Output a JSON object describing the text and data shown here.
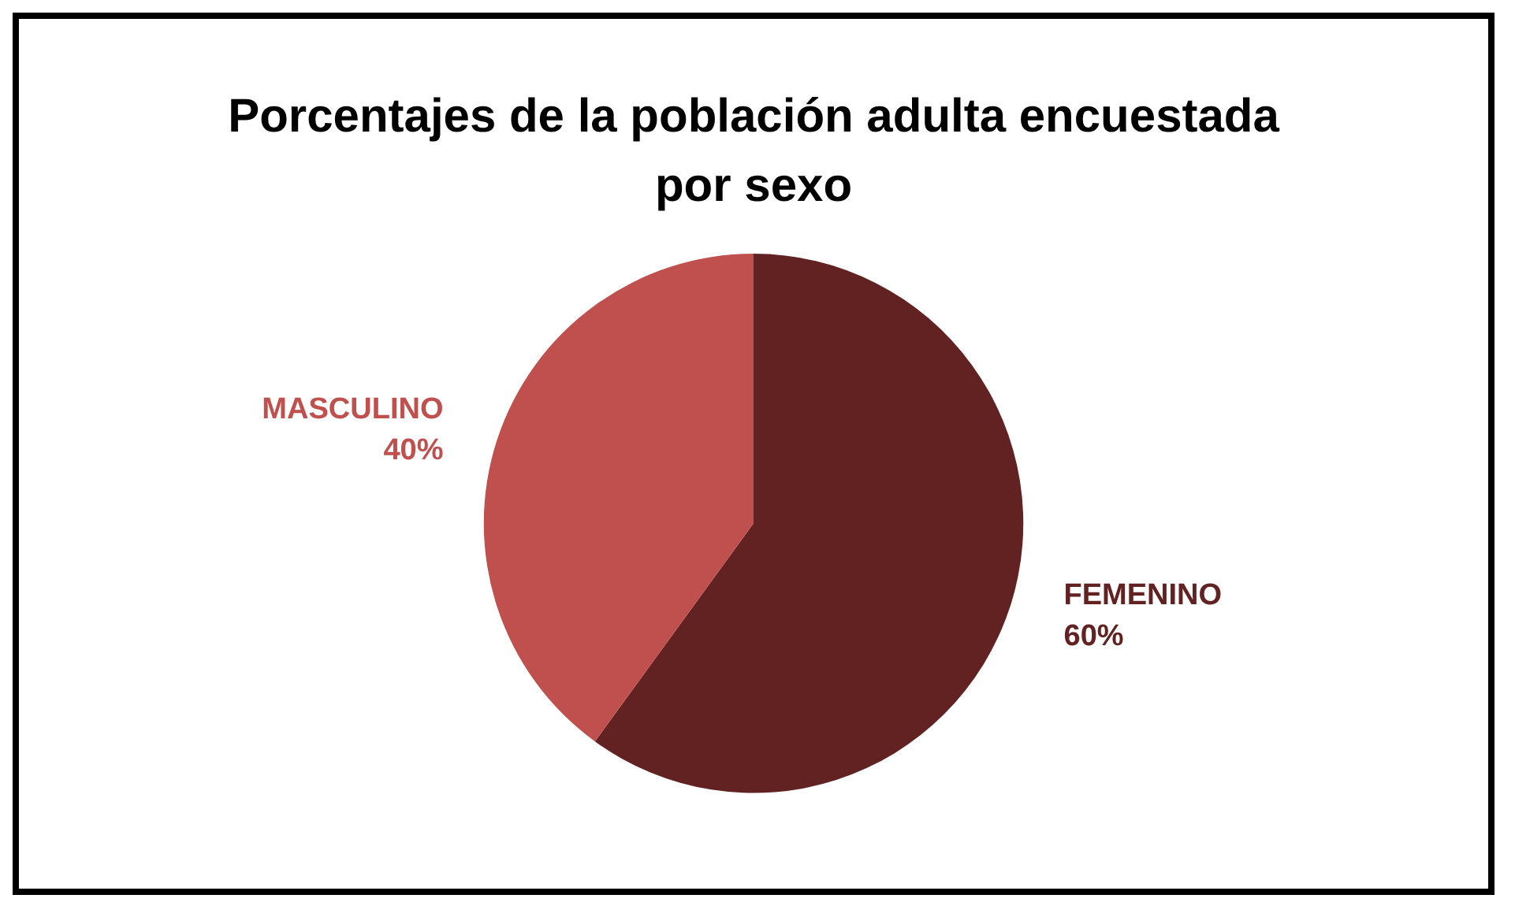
{
  "chart_data": {
    "type": "pie",
    "title": "Porcentajes de la población adulta encuestada\npor sexo",
    "categories": [
      "FEMENINO",
      "MASCULINO"
    ],
    "values": [
      60,
      40
    ],
    "colors": [
      "#622222",
      "#c0504d"
    ],
    "value_labels": [
      "60%",
      "40%"
    ],
    "legend": false
  }
}
